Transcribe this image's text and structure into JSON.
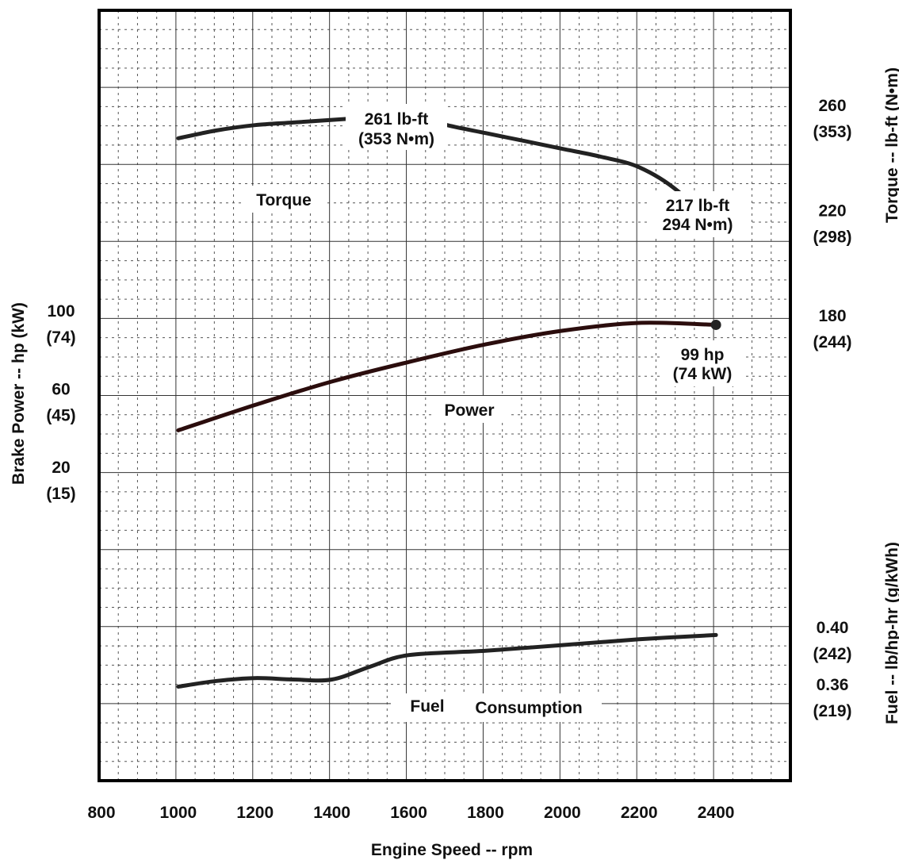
{
  "chart_data": {
    "type": "line",
    "xlabel": "Engine Speed -- rpm",
    "xlim": [
      800,
      2600
    ],
    "x_ticks": [
      "800",
      "1000",
      "1200",
      "1400",
      "1600",
      "1800",
      "2000",
      "2200",
      "2400"
    ],
    "grid": true,
    "panels": [
      {
        "name": "Torque",
        "axis_label": "Torque -- lb-ft (N•m)",
        "axis_side": "right",
        "ylim": [
          180,
          272
        ],
        "tick_labels": [
          {
            "value": 260,
            "primary": "260",
            "secondary": "(353)"
          },
          {
            "value": 220,
            "primary": "220",
            "secondary": "(298)"
          },
          {
            "value": 180,
            "primary": "180",
            "secondary": "(244)"
          }
        ],
        "curve_label": "Torque",
        "x": [
          1000,
          1100,
          1200,
          1300,
          1400,
          1500,
          1600,
          1700,
          1800,
          1900,
          2000,
          2100,
          2200,
          2300,
          2400
        ],
        "values": [
          252,
          255,
          257,
          258,
          259,
          260,
          261,
          257,
          254,
          251,
          248,
          245,
          241,
          232,
          217
        ],
        "callouts": [
          {
            "x": 1600,
            "value": 261,
            "line1": "261 lb-ft",
            "line2": "(353 N•m)"
          },
          {
            "x": 2400,
            "value": 217,
            "line1": "217 lb-ft",
            "line2": "294 N•m)"
          }
        ]
      },
      {
        "name": "Power",
        "axis_label": "Brake Power -- hp (kW)",
        "axis_side": "left",
        "ylim": [
          20,
          100
        ],
        "tick_labels": [
          {
            "value": 100,
            "primary": "100",
            "secondary": "(74)"
          },
          {
            "value": 60,
            "primary": "60",
            "secondary": "(45)"
          },
          {
            "value": 20,
            "primary": "20",
            "secondary": "(15)"
          }
        ],
        "curve_label": "Power",
        "x": [
          1000,
          1200,
          1400,
          1600,
          1800,
          2000,
          2200,
          2400
        ],
        "values": [
          45,
          58,
          70,
          80,
          89,
          96,
          100,
          99
        ],
        "callouts": [
          {
            "x": 2400,
            "value": 99,
            "line1": "99 hp",
            "line2": "(74 kW)"
          }
        ]
      },
      {
        "name": "Fuel Consumption",
        "axis_label": "Fuel -- lb/hp-hr (g/kWh)",
        "axis_side": "right",
        "ylim": [
          0.328,
          0.432
        ],
        "tick_labels": [
          {
            "value": 0.4,
            "primary": "0.40",
            "secondary": "(242)"
          },
          {
            "value": 0.36,
            "primary": "0.36",
            "secondary": "(219)"
          }
        ],
        "curve_label_parts": [
          "Fuel",
          "Consumption"
        ],
        "x": [
          1000,
          1100,
          1200,
          1300,
          1400,
          1500,
          1600,
          1800,
          2000,
          2200,
          2400
        ],
        "values": [
          0.367,
          0.371,
          0.373,
          0.372,
          0.372,
          0.381,
          0.389,
          0.392,
          0.396,
          0.4,
          0.403
        ]
      }
    ],
    "colors": {
      "curve": "#222222",
      "power_curve": "#2b0d0d",
      "grid": "#333333",
      "frame": "#000000"
    }
  }
}
